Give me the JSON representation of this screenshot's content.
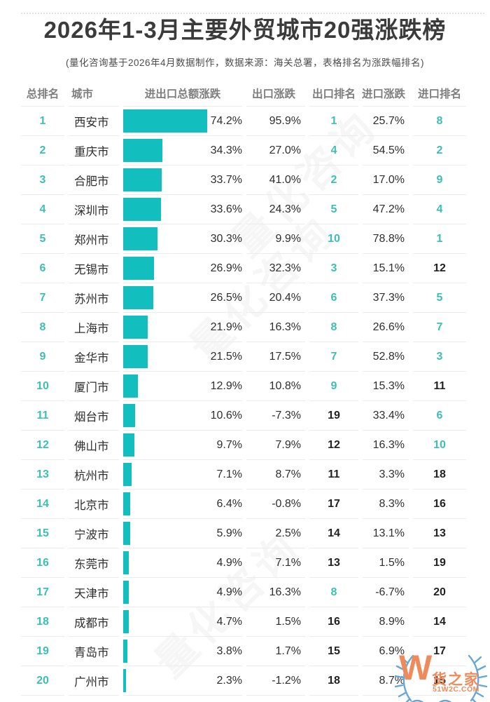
{
  "title": "2026年1-3月主要外贸城市20强涨跌榜",
  "subtitle": "(量化咨询基于2026年4月数据制作，数据来源：海关总署，表格排名为涨跌幅排名)",
  "watermark": {
    "text": "量化咨询"
  },
  "logo": {
    "letter": "W",
    "name": "货之家",
    "site": "51W2C.COM"
  },
  "colors": {
    "bar_teal": "#12bebe",
    "rank_teal": "#3dbfb4",
    "rank_dark": "#222222",
    "text_dark": "#2e2e2e",
    "header_gray": "#7e7e7e",
    "logo_orange": "#ef8a5c",
    "wreath_blue": "#66a7d8"
  },
  "table": {
    "headers": [
      "总排名",
      "城市",
      "进出口总额涨跌",
      "出口涨跌",
      "出口排名",
      "进口涨跌",
      "进口排名"
    ],
    "rank_teal_threshold": 10,
    "rows": [
      {
        "rank": 1,
        "city": "西安市",
        "total": 74.2,
        "export_change": 95.9,
        "export_rank": 1,
        "import_change": 25.7,
        "import_rank": 8
      },
      {
        "rank": 2,
        "city": "重庆市",
        "total": 34.3,
        "export_change": 27.0,
        "export_rank": 4,
        "import_change": 54.5,
        "import_rank": 2
      },
      {
        "rank": 3,
        "city": "合肥市",
        "total": 33.7,
        "export_change": 41.0,
        "export_rank": 2,
        "import_change": 17.0,
        "import_rank": 9
      },
      {
        "rank": 4,
        "city": "深圳市",
        "total": 33.6,
        "export_change": 24.3,
        "export_rank": 5,
        "import_change": 47.2,
        "import_rank": 4
      },
      {
        "rank": 5,
        "city": "郑州市",
        "total": 30.3,
        "export_change": 9.9,
        "export_rank": 10,
        "import_change": 78.8,
        "import_rank": 1
      },
      {
        "rank": 6,
        "city": "无锡市",
        "total": 26.9,
        "export_change": 32.3,
        "export_rank": 3,
        "import_change": 15.1,
        "import_rank": 12
      },
      {
        "rank": 7,
        "city": "苏州市",
        "total": 26.5,
        "export_change": 20.4,
        "export_rank": 6,
        "import_change": 37.3,
        "import_rank": 5
      },
      {
        "rank": 8,
        "city": "上海市",
        "total": 21.9,
        "export_change": 16.3,
        "export_rank": 8,
        "import_change": 26.6,
        "import_rank": 7
      },
      {
        "rank": 9,
        "city": "金华市",
        "total": 21.5,
        "export_change": 17.5,
        "export_rank": 7,
        "import_change": 52.8,
        "import_rank": 3
      },
      {
        "rank": 10,
        "city": "厦门市",
        "total": 12.9,
        "export_change": 10.8,
        "export_rank": 9,
        "import_change": 15.3,
        "import_rank": 11
      },
      {
        "rank": 11,
        "city": "烟台市",
        "total": 10.6,
        "export_change": -7.3,
        "export_rank": 19,
        "import_change": 33.4,
        "import_rank": 6
      },
      {
        "rank": 12,
        "city": "佛山市",
        "total": 9.7,
        "export_change": 7.9,
        "export_rank": 12,
        "import_change": 16.3,
        "import_rank": 10
      },
      {
        "rank": 13,
        "city": "杭州市",
        "total": 7.1,
        "export_change": 8.7,
        "export_rank": 11,
        "import_change": 3.3,
        "import_rank": 18
      },
      {
        "rank": 14,
        "city": "北京市",
        "total": 6.4,
        "export_change": -0.8,
        "export_rank": 17,
        "import_change": 8.3,
        "import_rank": 16
      },
      {
        "rank": 15,
        "city": "宁波市",
        "total": 5.9,
        "export_change": 2.5,
        "export_rank": 14,
        "import_change": 13.1,
        "import_rank": 13
      },
      {
        "rank": 16,
        "city": "东莞市",
        "total": 4.9,
        "export_change": 7.1,
        "export_rank": 13,
        "import_change": 1.5,
        "import_rank": 19
      },
      {
        "rank": 17,
        "city": "天津市",
        "total": 4.9,
        "export_change": 16.3,
        "export_rank": 8,
        "import_change": -6.7,
        "import_rank": 20
      },
      {
        "rank": 18,
        "city": "成都市",
        "total": 4.7,
        "export_change": 1.5,
        "export_rank": 16,
        "import_change": 8.9,
        "import_rank": 14
      },
      {
        "rank": 19,
        "city": "青岛市",
        "total": 3.8,
        "export_change": 1.7,
        "export_rank": 15,
        "import_change": 6.9,
        "import_rank": 17
      },
      {
        "rank": 20,
        "city": "广州市",
        "total": 2.3,
        "export_change": -1.2,
        "export_rank": 18,
        "import_change": 8.7,
        "import_rank": 15
      }
    ]
  },
  "chart_data": {
    "type": "bar",
    "title": "2026年1-3月主要外贸城市20强涨跌榜",
    "subtitle": "(量化咨询基于2026年4月数据制作，数据来源：海关总署，表格排名为涨跌幅排名)",
    "categories": [
      "西安市",
      "重庆市",
      "合肥市",
      "深圳市",
      "郑州市",
      "无锡市",
      "苏州市",
      "上海市",
      "金华市",
      "厦门市",
      "烟台市",
      "佛山市",
      "杭州市",
      "北京市",
      "宁波市",
      "东莞市",
      "天津市",
      "成都市",
      "青岛市",
      "广州市"
    ],
    "series": [
      {
        "name": "总排名",
        "values": [
          1,
          2,
          3,
          4,
          5,
          6,
          7,
          8,
          9,
          10,
          11,
          12,
          13,
          14,
          15,
          16,
          17,
          18,
          19,
          20
        ]
      },
      {
        "name": "进出口总额涨跌(%)",
        "values": [
          74.2,
          34.3,
          33.7,
          33.6,
          30.3,
          26.9,
          26.5,
          21.9,
          21.5,
          12.9,
          10.6,
          9.7,
          7.1,
          6.4,
          5.9,
          4.9,
          4.9,
          4.7,
          3.8,
          2.3
        ]
      },
      {
        "name": "出口涨跌(%)",
        "values": [
          95.9,
          27.0,
          41.0,
          24.3,
          9.9,
          32.3,
          20.4,
          16.3,
          17.5,
          10.8,
          -7.3,
          7.9,
          8.7,
          -0.8,
          2.5,
          7.1,
          16.3,
          1.5,
          1.7,
          -1.2
        ]
      },
      {
        "name": "出口排名",
        "values": [
          1,
          4,
          2,
          5,
          10,
          3,
          6,
          8,
          7,
          9,
          19,
          12,
          11,
          17,
          14,
          13,
          8,
          16,
          15,
          18
        ]
      },
      {
        "name": "进口涨跌(%)",
        "values": [
          25.7,
          54.5,
          17.0,
          47.2,
          78.8,
          15.1,
          37.3,
          26.6,
          52.8,
          15.3,
          33.4,
          16.3,
          3.3,
          8.3,
          13.1,
          1.5,
          -6.7,
          8.9,
          6.9,
          8.7
        ]
      },
      {
        "name": "进口排名",
        "values": [
          8,
          2,
          9,
          4,
          1,
          12,
          5,
          7,
          3,
          11,
          6,
          10,
          18,
          16,
          13,
          19,
          20,
          14,
          17,
          15
        ]
      }
    ],
    "xlabel": "",
    "ylabel": "",
    "bar_axis_max": 74.2,
    "orientation": "horizontal",
    "grid": false,
    "legend_position": "none"
  }
}
